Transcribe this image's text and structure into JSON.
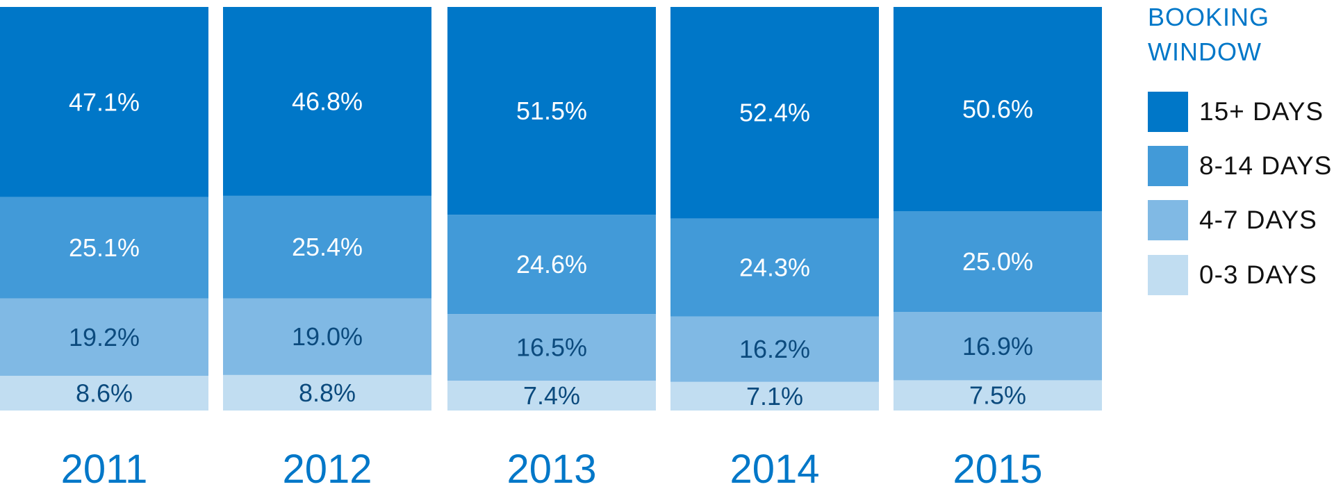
{
  "chart_data": {
    "type": "bar",
    "stacked": true,
    "percent_stacked": true,
    "categories": [
      "2011",
      "2012",
      "2013",
      "2014",
      "2015"
    ],
    "series": [
      {
        "name": "0-3 DAYS",
        "color": "#c1ddf1",
        "text_color": "#0b4a7d",
        "values": [
          8.6,
          8.8,
          7.4,
          7.1,
          7.5
        ],
        "labels": [
          "8.6%",
          "8.8%",
          "7.4%",
          "7.1%",
          "7.5%"
        ]
      },
      {
        "name": "4-7 DAYS",
        "color": "#80b9e4",
        "text_color": "#0b4a7d",
        "values": [
          19.2,
          19.0,
          16.5,
          16.2,
          16.9
        ],
        "labels": [
          "19.2%",
          "19.0%",
          "16.5%",
          "16.2%",
          "16.9%"
        ]
      },
      {
        "name": "8-14 DAYS",
        "color": "#429ad8",
        "text_color": "#ffffff",
        "values": [
          25.1,
          25.4,
          24.6,
          24.3,
          25.0
        ],
        "labels": [
          "25.1%",
          "25.4%",
          "24.6%",
          "24.3%",
          "25.0%"
        ]
      },
      {
        "name": "15+ DAYS",
        "color": "#0077c8",
        "text_color": "#ffffff",
        "values": [
          47.1,
          46.8,
          51.5,
          52.4,
          50.6
        ],
        "labels": [
          "47.1%",
          "46.8%",
          "51.5%",
          "52.4%",
          "50.6%"
        ]
      }
    ],
    "legend": {
      "title_lines": [
        "BOOKING",
        "WINDOW"
      ],
      "placement": "right",
      "order": [
        "15+ DAYS",
        "8-14 DAYS",
        "4-7 DAYS",
        "0-3 DAYS"
      ]
    },
    "ylim": [
      0,
      100
    ],
    "grid": false,
    "axis_label_color": "#0077c8"
  }
}
